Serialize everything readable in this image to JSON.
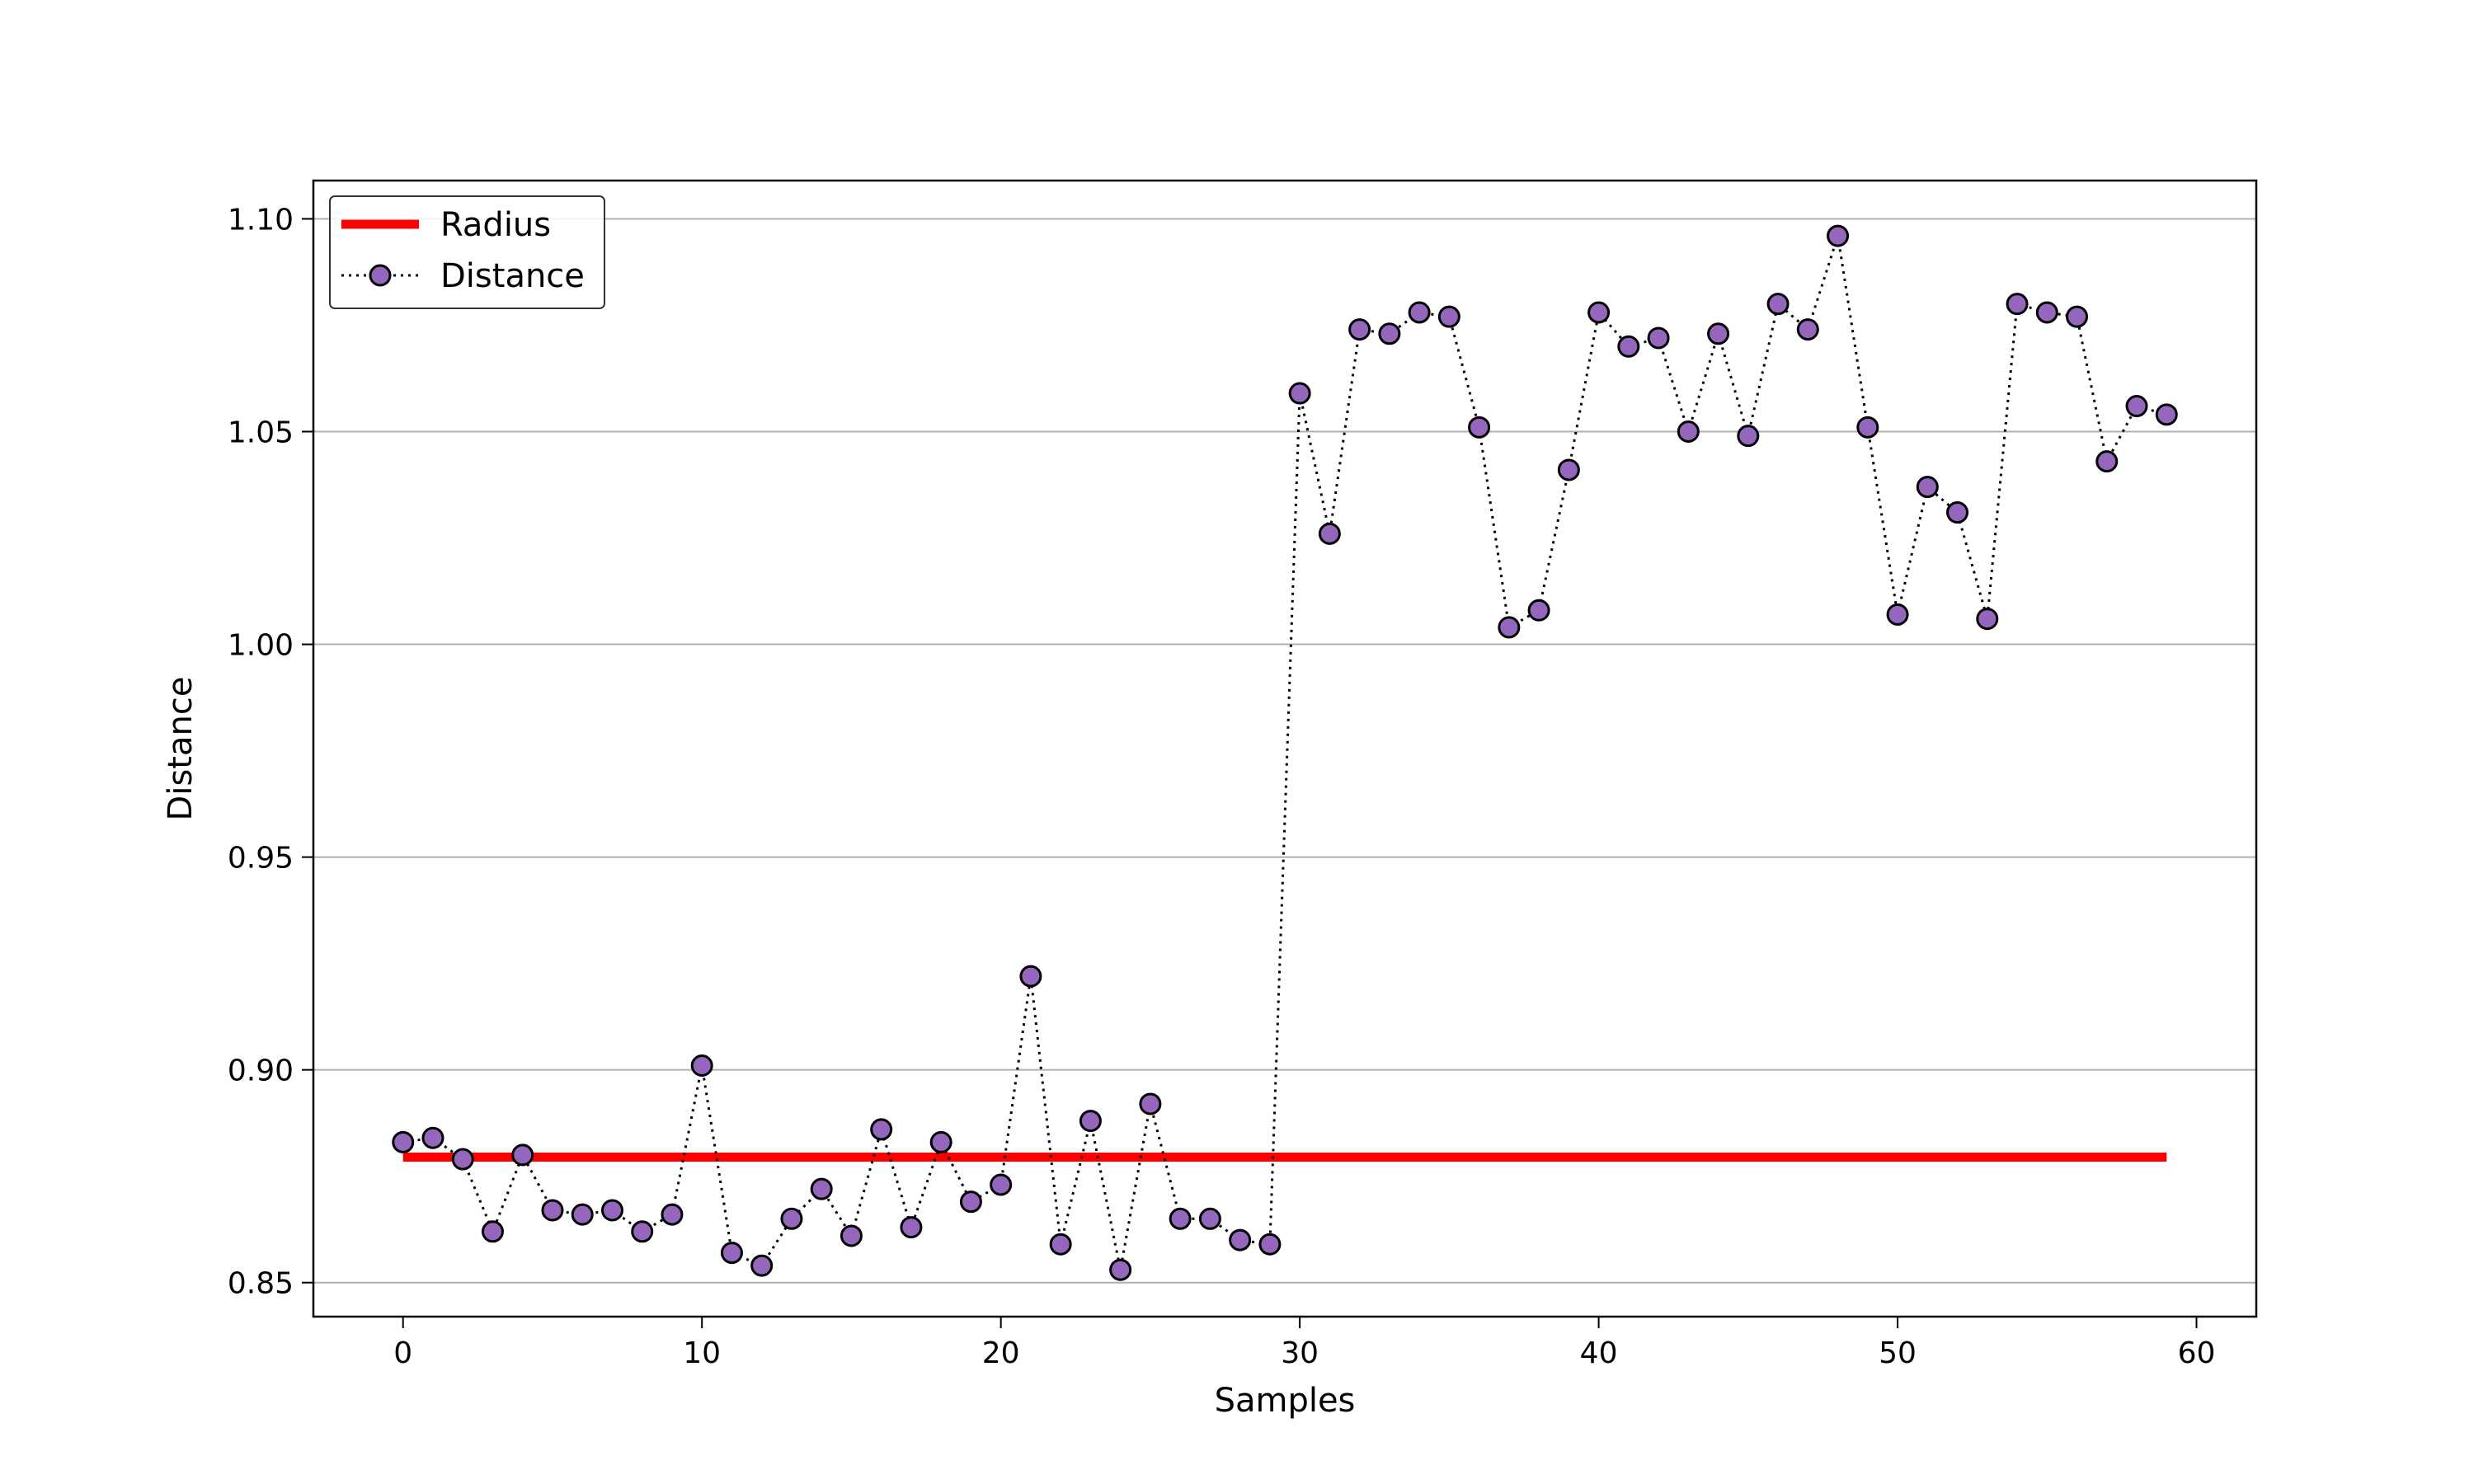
{
  "chart_data": {
    "type": "line",
    "title": "",
    "xlabel": "Samples",
    "ylabel": "Distance",
    "xlim": [
      -3,
      62
    ],
    "ylim": [
      0.842,
      1.109
    ],
    "xticks": [
      0,
      10,
      20,
      30,
      40,
      50,
      60
    ],
    "xtick_labels": [
      "0",
      "10",
      "20",
      "30",
      "40",
      "50",
      "60"
    ],
    "yticks": [
      0.85,
      0.9,
      0.95,
      1.0,
      1.05,
      1.1
    ],
    "ytick_labels": [
      "0.85",
      "0.90",
      "0.95",
      "1.00",
      "1.05",
      "1.10"
    ],
    "grid": "horizontal",
    "legend_placement": "top-left",
    "series": [
      {
        "name": "Radius",
        "style": "solid-line",
        "color": "#ff0000",
        "x": [
          0,
          59
        ],
        "values": [
          0.8795,
          0.8795
        ]
      },
      {
        "name": "Distance",
        "style": "dotted-line-with-markers",
        "line_color": "#000000",
        "marker_color": "#9467bd",
        "x": [
          0,
          1,
          2,
          3,
          4,
          5,
          6,
          7,
          8,
          9,
          10,
          11,
          12,
          13,
          14,
          15,
          16,
          17,
          18,
          19,
          20,
          21,
          22,
          23,
          24,
          25,
          26,
          27,
          28,
          29,
          30,
          31,
          32,
          33,
          34,
          35,
          36,
          37,
          38,
          39,
          40,
          41,
          42,
          43,
          44,
          45,
          46,
          47,
          48,
          49,
          50,
          51,
          52,
          53,
          54,
          55,
          56,
          57,
          58,
          59
        ],
        "values": [
          0.883,
          0.884,
          0.879,
          0.862,
          0.88,
          0.867,
          0.866,
          0.867,
          0.862,
          0.866,
          0.901,
          0.857,
          0.854,
          0.865,
          0.872,
          0.861,
          0.886,
          0.863,
          0.883,
          0.869,
          0.873,
          0.922,
          0.859,
          0.888,
          0.853,
          0.892,
          0.865,
          0.865,
          0.86,
          0.859,
          1.059,
          1.026,
          1.074,
          1.073,
          1.078,
          1.077,
          1.051,
          1.004,
          1.008,
          1.041,
          1.078,
          1.07,
          1.072,
          1.05,
          1.073,
          1.049,
          1.08,
          1.074,
          1.096,
          1.051,
          1.007,
          1.037,
          1.031,
          1.006,
          1.08,
          1.078,
          1.077,
          1.043,
          1.056,
          1.054
        ]
      }
    ]
  }
}
